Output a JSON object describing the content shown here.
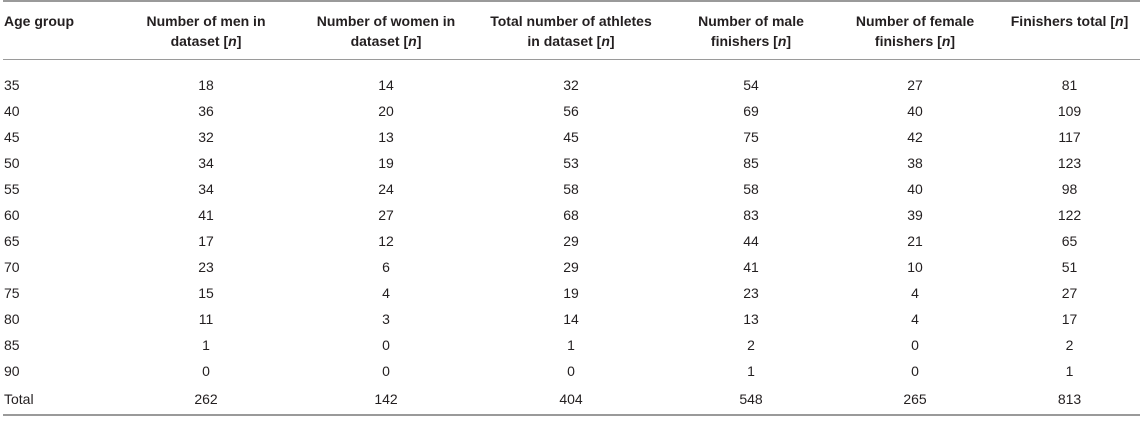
{
  "table": {
    "headers": [
      {
        "line1": "Age group",
        "line2": "",
        "unit": ""
      },
      {
        "line1": "Number of men in",
        "line2": "dataset ",
        "unit": "n"
      },
      {
        "line1": "Number of women in",
        "line2": "dataset ",
        "unit": "n"
      },
      {
        "line1": "Total number of athletes",
        "line2": "in dataset ",
        "unit": "n"
      },
      {
        "line1": "Number of male",
        "line2": "finishers ",
        "unit": "n"
      },
      {
        "line1": "Number of female",
        "line2": "finishers ",
        "unit": "n"
      },
      {
        "line1": "Finishers total ",
        "line2": "",
        "unit": "n"
      }
    ],
    "rows": [
      [
        "35",
        "18",
        "14",
        "32",
        "54",
        "27",
        "81"
      ],
      [
        "40",
        "36",
        "20",
        "56",
        "69",
        "40",
        "109"
      ],
      [
        "45",
        "32",
        "13",
        "45",
        "75",
        "42",
        "117"
      ],
      [
        "50",
        "34",
        "19",
        "53",
        "85",
        "38",
        "123"
      ],
      [
        "55",
        "34",
        "24",
        "58",
        "58",
        "40",
        "98"
      ],
      [
        "60",
        "41",
        "27",
        "68",
        "83",
        "39",
        "122"
      ],
      [
        "65",
        "17",
        "12",
        "29",
        "44",
        "21",
        "65"
      ],
      [
        "70",
        "23",
        "6",
        "29",
        "41",
        "10",
        "51"
      ],
      [
        "75",
        "15",
        "4",
        "19",
        "23",
        "4",
        "27"
      ],
      [
        "80",
        "11",
        "3",
        "14",
        "13",
        "4",
        "17"
      ],
      [
        "85",
        "1",
        "0",
        "1",
        "2",
        "0",
        "2"
      ],
      [
        "90",
        "0",
        "0",
        "0",
        "1",
        "0",
        "1"
      ],
      [
        "Total",
        "262",
        "142",
        "404",
        "548",
        "265",
        "813"
      ]
    ]
  }
}
